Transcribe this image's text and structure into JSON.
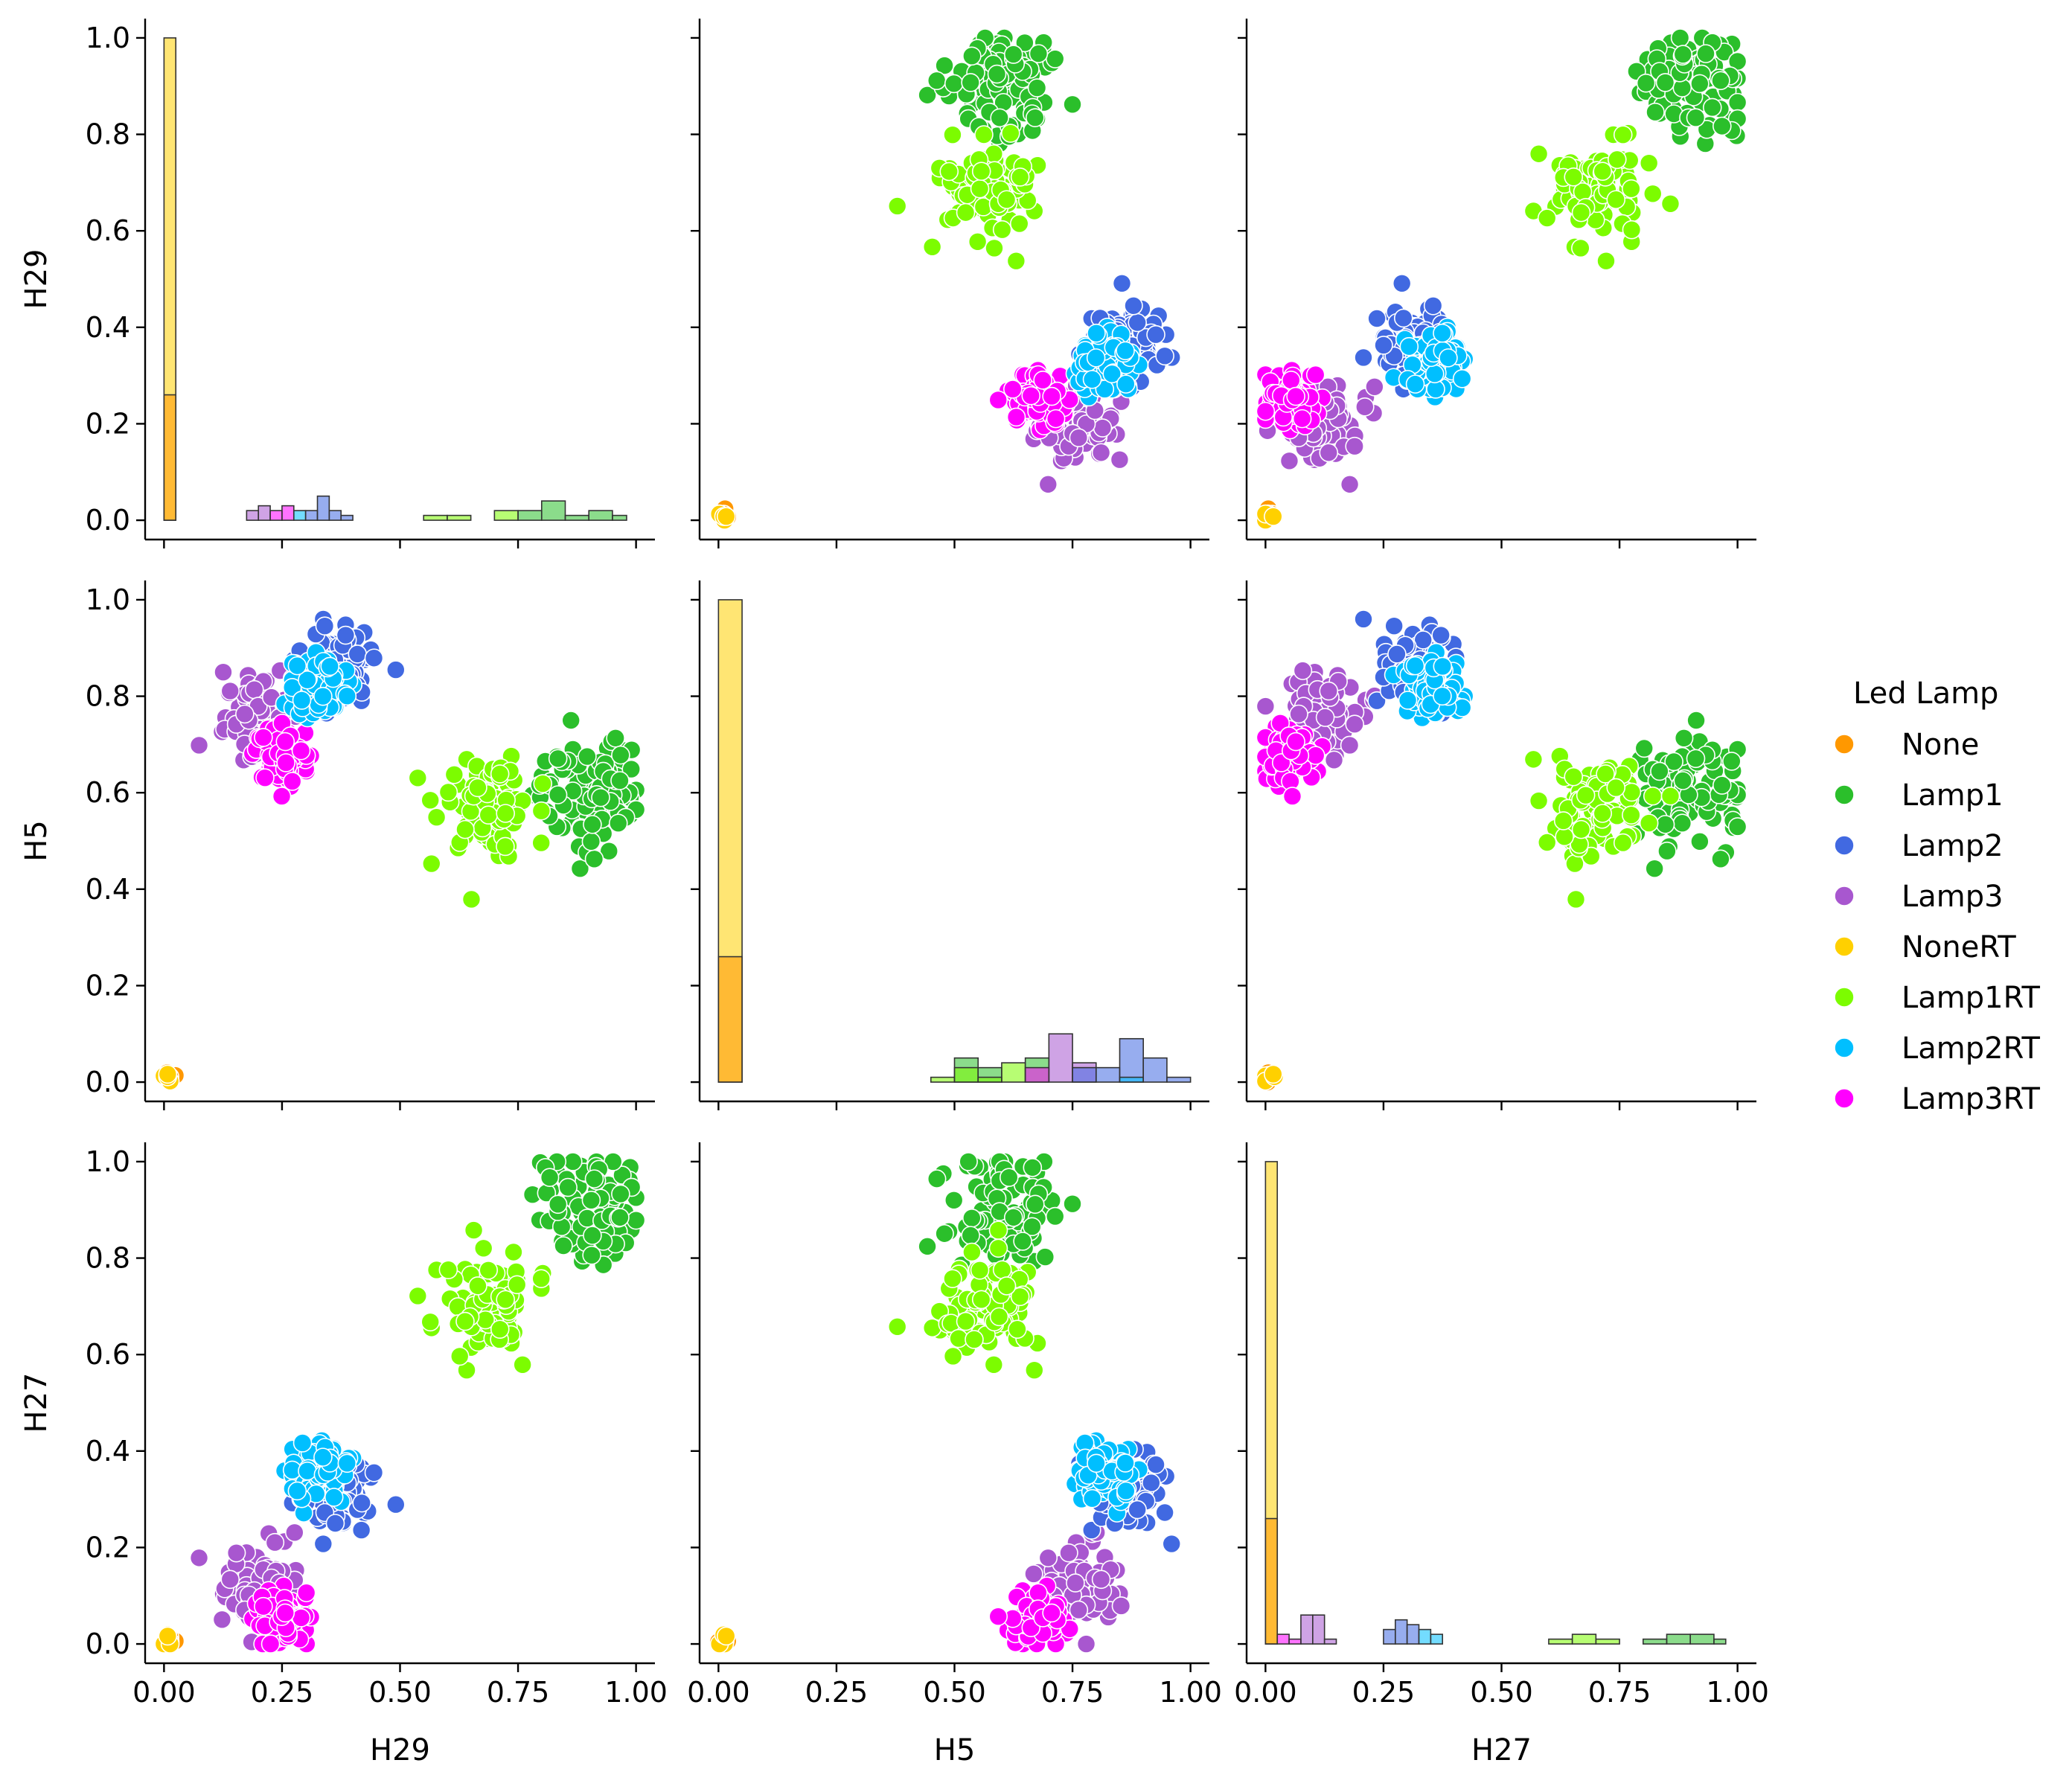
{
  "chart_data": {
    "type": "scatter",
    "title": "",
    "variables": [
      "H29",
      "H5",
      "H27"
    ],
    "legend": {
      "title": "Led Lamp",
      "placement": "right",
      "entries": [
        {
          "name": "None",
          "color": "#ff9800"
        },
        {
          "name": "Lamp1",
          "color": "#2bbf2b"
        },
        {
          "name": "Lamp2",
          "color": "#4169e1"
        },
        {
          "name": "Lamp3",
          "color": "#a857cf"
        },
        {
          "name": "NoneRT",
          "color": "#ffd000"
        },
        {
          "name": "Lamp1RT",
          "color": "#7cfc00"
        },
        {
          "name": "Lamp2RT",
          "color": "#00bfff"
        },
        {
          "name": "Lamp3RT",
          "color": "#ff00ff"
        }
      ]
    },
    "axis_range": [
      0,
      1
    ],
    "ticks": [
      "0.00",
      "0.25",
      "0.50",
      "0.75",
      "1.00"
    ],
    "yticks": [
      "0.0",
      "0.2",
      "0.4",
      "0.6",
      "0.8",
      "1.0"
    ],
    "cluster_centers": {
      "None": {
        "H29": 0.01,
        "H5": 0.01,
        "H27": 0.01
      },
      "NoneRT": {
        "H29": 0.01,
        "H5": 0.01,
        "H27": 0.01
      },
      "Lamp1": {
        "H29": 0.9,
        "H5": 0.6,
        "H27": 0.9
      },
      "Lamp1RT": {
        "H29": 0.68,
        "H5": 0.58,
        "H27": 0.7
      },
      "Lamp2": {
        "H29": 0.36,
        "H5": 0.87,
        "H27": 0.31
      },
      "Lamp2RT": {
        "H29": 0.33,
        "H5": 0.82,
        "H27": 0.35
      },
      "Lamp3": {
        "H29": 0.21,
        "H5": 0.76,
        "H27": 0.12
      },
      "Lamp3RT": {
        "H29": 0.25,
        "H5": 0.68,
        "H27": 0.05
      }
    },
    "cluster_spread": {
      "None": 0.01,
      "NoneRT": 0.01,
      "Lamp1": 0.06,
      "Lamp1RT": 0.05,
      "Lamp2": 0.04,
      "Lamp2RT": 0.03,
      "Lamp3": 0.04,
      "Lamp3RT": 0.03
    },
    "diagonal_histograms": {
      "H29": {
        "bins": [
          {
            "x0": 0.0,
            "x1": 0.025,
            "counts": {
              "NoneRT": 1.0,
              "None": 0.26
            }
          },
          {
            "x0": 0.175,
            "x1": 0.2,
            "counts": {
              "Lamp3": 0.02
            }
          },
          {
            "x0": 0.2,
            "x1": 0.225,
            "counts": {
              "Lamp3": 0.03
            }
          },
          {
            "x0": 0.225,
            "x1": 0.25,
            "counts": {
              "Lamp3RT": 0.02
            }
          },
          {
            "x0": 0.25,
            "x1": 0.275,
            "counts": {
              "Lamp3RT": 0.03
            }
          },
          {
            "x0": 0.275,
            "x1": 0.3,
            "counts": {
              "Lamp2RT": 0.02
            }
          },
          {
            "x0": 0.3,
            "x1": 0.325,
            "counts": {
              "Lamp2": 0.02
            }
          },
          {
            "x0": 0.325,
            "x1": 0.35,
            "counts": {
              "Lamp2": 0.05
            }
          },
          {
            "x0": 0.35,
            "x1": 0.375,
            "counts": {
              "Lamp2": 0.02
            }
          },
          {
            "x0": 0.375,
            "x1": 0.4,
            "counts": {
              "Lamp2": 0.01
            }
          },
          {
            "x0": 0.55,
            "x1": 0.6,
            "counts": {
              "Lamp1RT": 0.01
            }
          },
          {
            "x0": 0.6,
            "x1": 0.65,
            "counts": {
              "Lamp1RT": 0.01
            }
          },
          {
            "x0": 0.7,
            "x1": 0.75,
            "counts": {
              "Lamp1RT": 0.02
            }
          },
          {
            "x0": 0.75,
            "x1": 0.8,
            "counts": {
              "Lamp1": 0.02
            }
          },
          {
            "x0": 0.8,
            "x1": 0.85,
            "counts": {
              "Lamp1": 0.04
            }
          },
          {
            "x0": 0.85,
            "x1": 0.9,
            "counts": {
              "Lamp1": 0.01
            }
          },
          {
            "x0": 0.9,
            "x1": 0.95,
            "counts": {
              "Lamp1": 0.02
            }
          },
          {
            "x0": 0.95,
            "x1": 0.98,
            "counts": {
              "Lamp1": 0.01
            }
          }
        ]
      },
      "H5": {
        "bins": [
          {
            "x0": 0.0,
            "x1": 0.05,
            "counts": {
              "NoneRT": 1.0,
              "None": 0.26
            }
          },
          {
            "x0": 0.45,
            "x1": 0.5,
            "counts": {
              "Lamp1RT": 0.01
            }
          },
          {
            "x0": 0.5,
            "x1": 0.55,
            "counts": {
              "Lamp1": 0.05,
              "Lamp1RT": 0.03
            }
          },
          {
            "x0": 0.55,
            "x1": 0.6,
            "counts": {
              "Lamp1": 0.03,
              "Lamp1RT": 0.01
            }
          },
          {
            "x0": 0.6,
            "x1": 0.65,
            "counts": {
              "Lamp1RT": 0.04
            }
          },
          {
            "x0": 0.65,
            "x1": 0.7,
            "counts": {
              "Lamp1": 0.05,
              "Lamp3RT": 0.03
            }
          },
          {
            "x0": 0.7,
            "x1": 0.75,
            "counts": {
              "Lamp3": 0.1
            }
          },
          {
            "x0": 0.75,
            "x1": 0.8,
            "counts": {
              "Lamp3": 0.04,
              "Lamp2": 0.03
            }
          },
          {
            "x0": 0.8,
            "x1": 0.85,
            "counts": {
              "Lamp2": 0.03
            }
          },
          {
            "x0": 0.85,
            "x1": 0.9,
            "counts": {
              "Lamp2": 0.09,
              "Lamp2RT": 0.01
            }
          },
          {
            "x0": 0.9,
            "x1": 0.95,
            "counts": {
              "Lamp2": 0.05
            }
          },
          {
            "x0": 0.95,
            "x1": 1.0,
            "counts": {
              "Lamp2": 0.01
            }
          }
        ]
      },
      "H27": {
        "bins": [
          {
            "x0": 0.0,
            "x1": 0.025,
            "counts": {
              "NoneRT": 1.0,
              "None": 0.26
            }
          },
          {
            "x0": 0.025,
            "x1": 0.05,
            "counts": {
              "Lamp3RT": 0.02
            }
          },
          {
            "x0": 0.05,
            "x1": 0.075,
            "counts": {
              "Lamp3RT": 0.01
            }
          },
          {
            "x0": 0.075,
            "x1": 0.1,
            "counts": {
              "Lamp3": 0.06
            }
          },
          {
            "x0": 0.1,
            "x1": 0.125,
            "counts": {
              "Lamp3": 0.06
            }
          },
          {
            "x0": 0.125,
            "x1": 0.15,
            "counts": {
              "Lamp3": 0.01
            }
          },
          {
            "x0": 0.25,
            "x1": 0.275,
            "counts": {
              "Lamp2": 0.03
            }
          },
          {
            "x0": 0.275,
            "x1": 0.3,
            "counts": {
              "Lamp2": 0.05
            }
          },
          {
            "x0": 0.3,
            "x1": 0.325,
            "counts": {
              "Lamp2": 0.04
            }
          },
          {
            "x0": 0.325,
            "x1": 0.35,
            "counts": {
              "Lamp2RT": 0.03
            }
          },
          {
            "x0": 0.35,
            "x1": 0.375,
            "counts": {
              "Lamp2RT": 0.02
            }
          },
          {
            "x0": 0.6,
            "x1": 0.65,
            "counts": {
              "Lamp1RT": 0.01
            }
          },
          {
            "x0": 0.65,
            "x1": 0.7,
            "counts": {
              "Lamp1RT": 0.02
            }
          },
          {
            "x0": 0.7,
            "x1": 0.75,
            "counts": {
              "Lamp1RT": 0.01
            }
          },
          {
            "x0": 0.8,
            "x1": 0.85,
            "counts": {
              "Lamp1": 0.01
            }
          },
          {
            "x0": 0.85,
            "x1": 0.9,
            "counts": {
              "Lamp1": 0.02
            }
          },
          {
            "x0": 0.9,
            "x1": 0.95,
            "counts": {
              "Lamp1": 0.02
            }
          },
          {
            "x0": 0.95,
            "x1": 0.975,
            "counts": {
              "Lamp1": 0.01
            }
          }
        ]
      }
    }
  }
}
